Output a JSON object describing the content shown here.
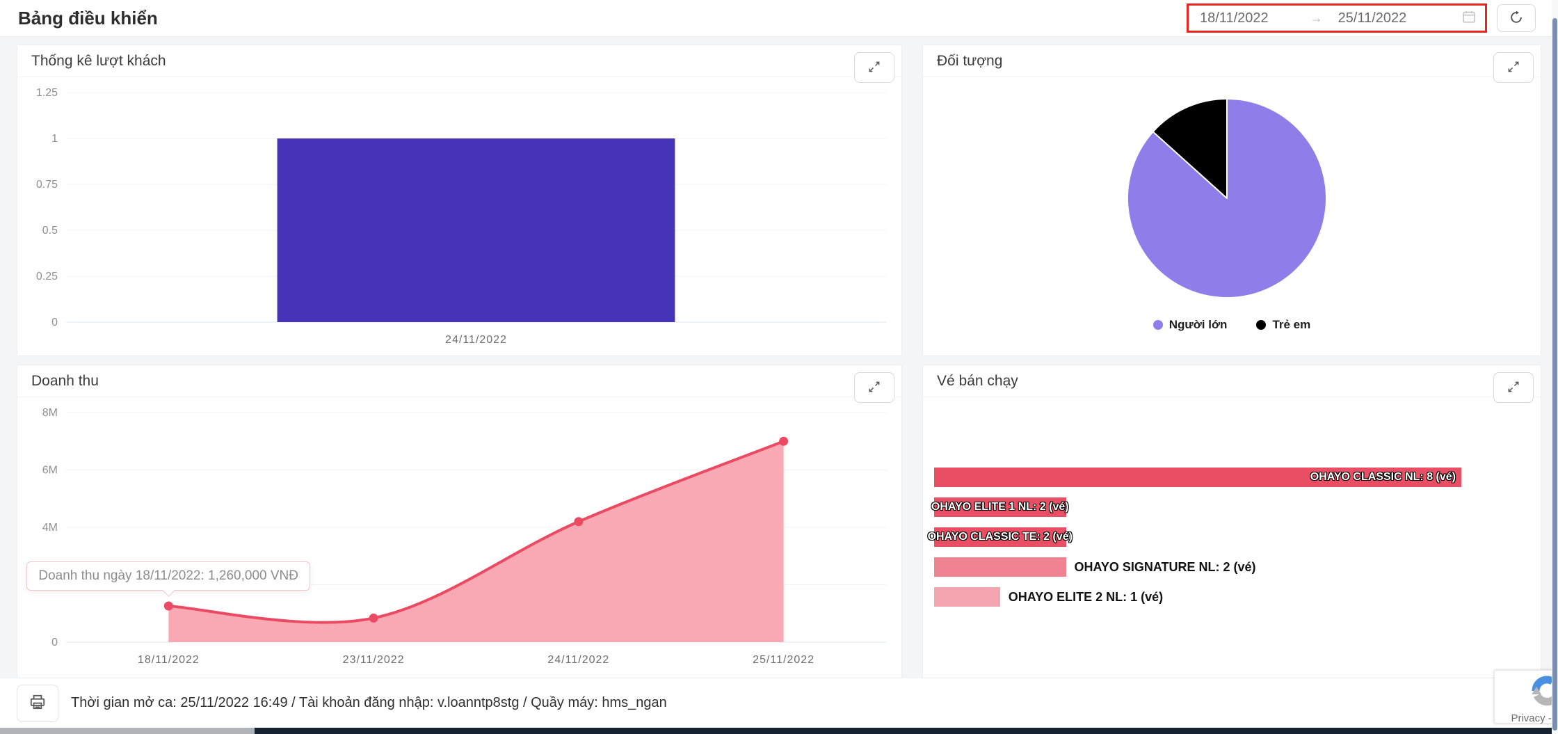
{
  "page": {
    "title": "Bảng điều khiển"
  },
  "toolbar": {
    "date_start": "18/11/2022",
    "date_end": "25/11/2022",
    "date_separator": "→",
    "highlight_color": "#e8241d"
  },
  "panels": {
    "visitors": {
      "title": "Thống kê lượt khách"
    },
    "audience": {
      "title": "Đối tượng"
    },
    "revenue": {
      "title": "Doanh thu"
    },
    "tickets": {
      "title": "Vé bán chạy"
    }
  },
  "footer": {
    "shift_info": "Thời gian mở ca: 25/11/2022 16:49 / Tài khoản đăng nhập: v.loanntp8stg / Quầy máy: hms_ngan"
  },
  "recaptcha": {
    "text": "Privacy - Terms"
  },
  "chart_data": [
    {
      "id": "visitors",
      "type": "bar",
      "title": "Thống kê lượt khách",
      "categories": [
        "24/11/2022"
      ],
      "values": [
        1
      ],
      "ylim": [
        0,
        1.25
      ],
      "yticks": [
        0,
        0.25,
        0.5,
        0.75,
        1,
        1.25
      ],
      "bar_color": "#4634b8",
      "grid": true,
      "legend_position": "none"
    },
    {
      "id": "audience",
      "type": "pie",
      "title": "Đối tượng",
      "labels": [
        "Người lớn",
        "Trẻ em"
      ],
      "values": [
        13,
        2
      ],
      "percentages": [
        86.7,
        13.3
      ],
      "colors": [
        "#8f7dea",
        "#000000"
      ],
      "legend_position": "bottom"
    },
    {
      "id": "revenue",
      "type": "area",
      "title": "Doanh thu",
      "x": [
        "18/11/2022",
        "23/11/2022",
        "24/11/2022",
        "25/11/2022"
      ],
      "values": [
        1260000,
        840000,
        4200000,
        7000000
      ],
      "ylim": [
        0,
        8000000
      ],
      "ytick_values": [
        0,
        2000000,
        4000000,
        6000000,
        8000000
      ],
      "ytick_labels": [
        "0",
        "2M",
        "4M",
        "6M",
        "8M"
      ],
      "line_color": "#ea4b62",
      "fill_color": "#f9a9b3",
      "grid": true,
      "tooltip": {
        "text": "Doanh thu ngày 18/11/2022: 1,260,000 VNĐ",
        "point_index": 0
      }
    },
    {
      "id": "tickets",
      "type": "bar-horizontal",
      "title": "Vé bán chạy",
      "xmax": 8,
      "track_width": 758,
      "items": [
        {
          "label": "OHAYO CLASSIC NL: 8 (vé)",
          "value": 8,
          "color": "#e94f64",
          "label_position": "inside-end"
        },
        {
          "label": "OHAYO ELITE 1 NL: 2 (vé)",
          "value": 2,
          "color": "#e94f64",
          "label_position": "inside"
        },
        {
          "label": "OHAYO CLASSIC TE: 2 (vé)",
          "value": 2,
          "color": "#e94f64",
          "label_position": "inside"
        },
        {
          "label": "OHAYO SIGNATURE NL: 2 (vé)",
          "value": 2,
          "color": "#ef8392",
          "label_position": "outside"
        },
        {
          "label": "OHAYO ELITE 2 NL: 1 (vé)",
          "value": 1,
          "color": "#f4a5af",
          "label_position": "outside"
        }
      ]
    }
  ]
}
